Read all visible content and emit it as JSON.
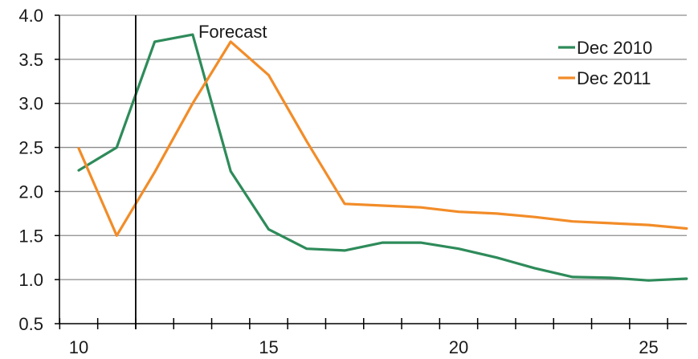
{
  "chart_data": {
    "type": "line",
    "title": "",
    "xlabel": "",
    "ylabel": "",
    "xlim": [
      10,
      26
    ],
    "ylim": [
      0.5,
      4.0
    ],
    "x_ticks": [
      10,
      15,
      20,
      25
    ],
    "y_ticks": [
      "0.5",
      "1.0",
      "1.5",
      "2.0",
      "2.5",
      "3.0",
      "3.5",
      "4.0"
    ],
    "grid": "horizontal",
    "legend_position": "top-right",
    "series": [
      {
        "name": "Dec 2010",
        "color": "#2e8b5a",
        "x": [
          10,
          11,
          12,
          13,
          14,
          15,
          16,
          17,
          18,
          19,
          20,
          21,
          22,
          23,
          24,
          25,
          26
        ],
        "y": [
          2.24,
          2.5,
          3.7,
          3.78,
          2.23,
          1.57,
          1.35,
          1.33,
          1.42,
          1.42,
          1.35,
          1.25,
          1.13,
          1.03,
          1.02,
          0.99,
          1.01
        ]
      },
      {
        "name": "Dec 2011",
        "color": "#f28c28",
        "x": [
          10,
          11,
          12,
          13,
          14,
          15,
          16,
          17,
          18,
          19,
          20,
          21,
          22,
          23,
          24,
          25,
          26
        ],
        "y": [
          2.49,
          1.5,
          2.22,
          3.0,
          3.7,
          3.32,
          2.57,
          1.86,
          1.84,
          1.82,
          1.77,
          1.75,
          1.71,
          1.66,
          1.64,
          1.62,
          1.58
        ]
      }
    ],
    "annotations": [
      {
        "text": "Forecast",
        "x": 11.5
      }
    ]
  }
}
